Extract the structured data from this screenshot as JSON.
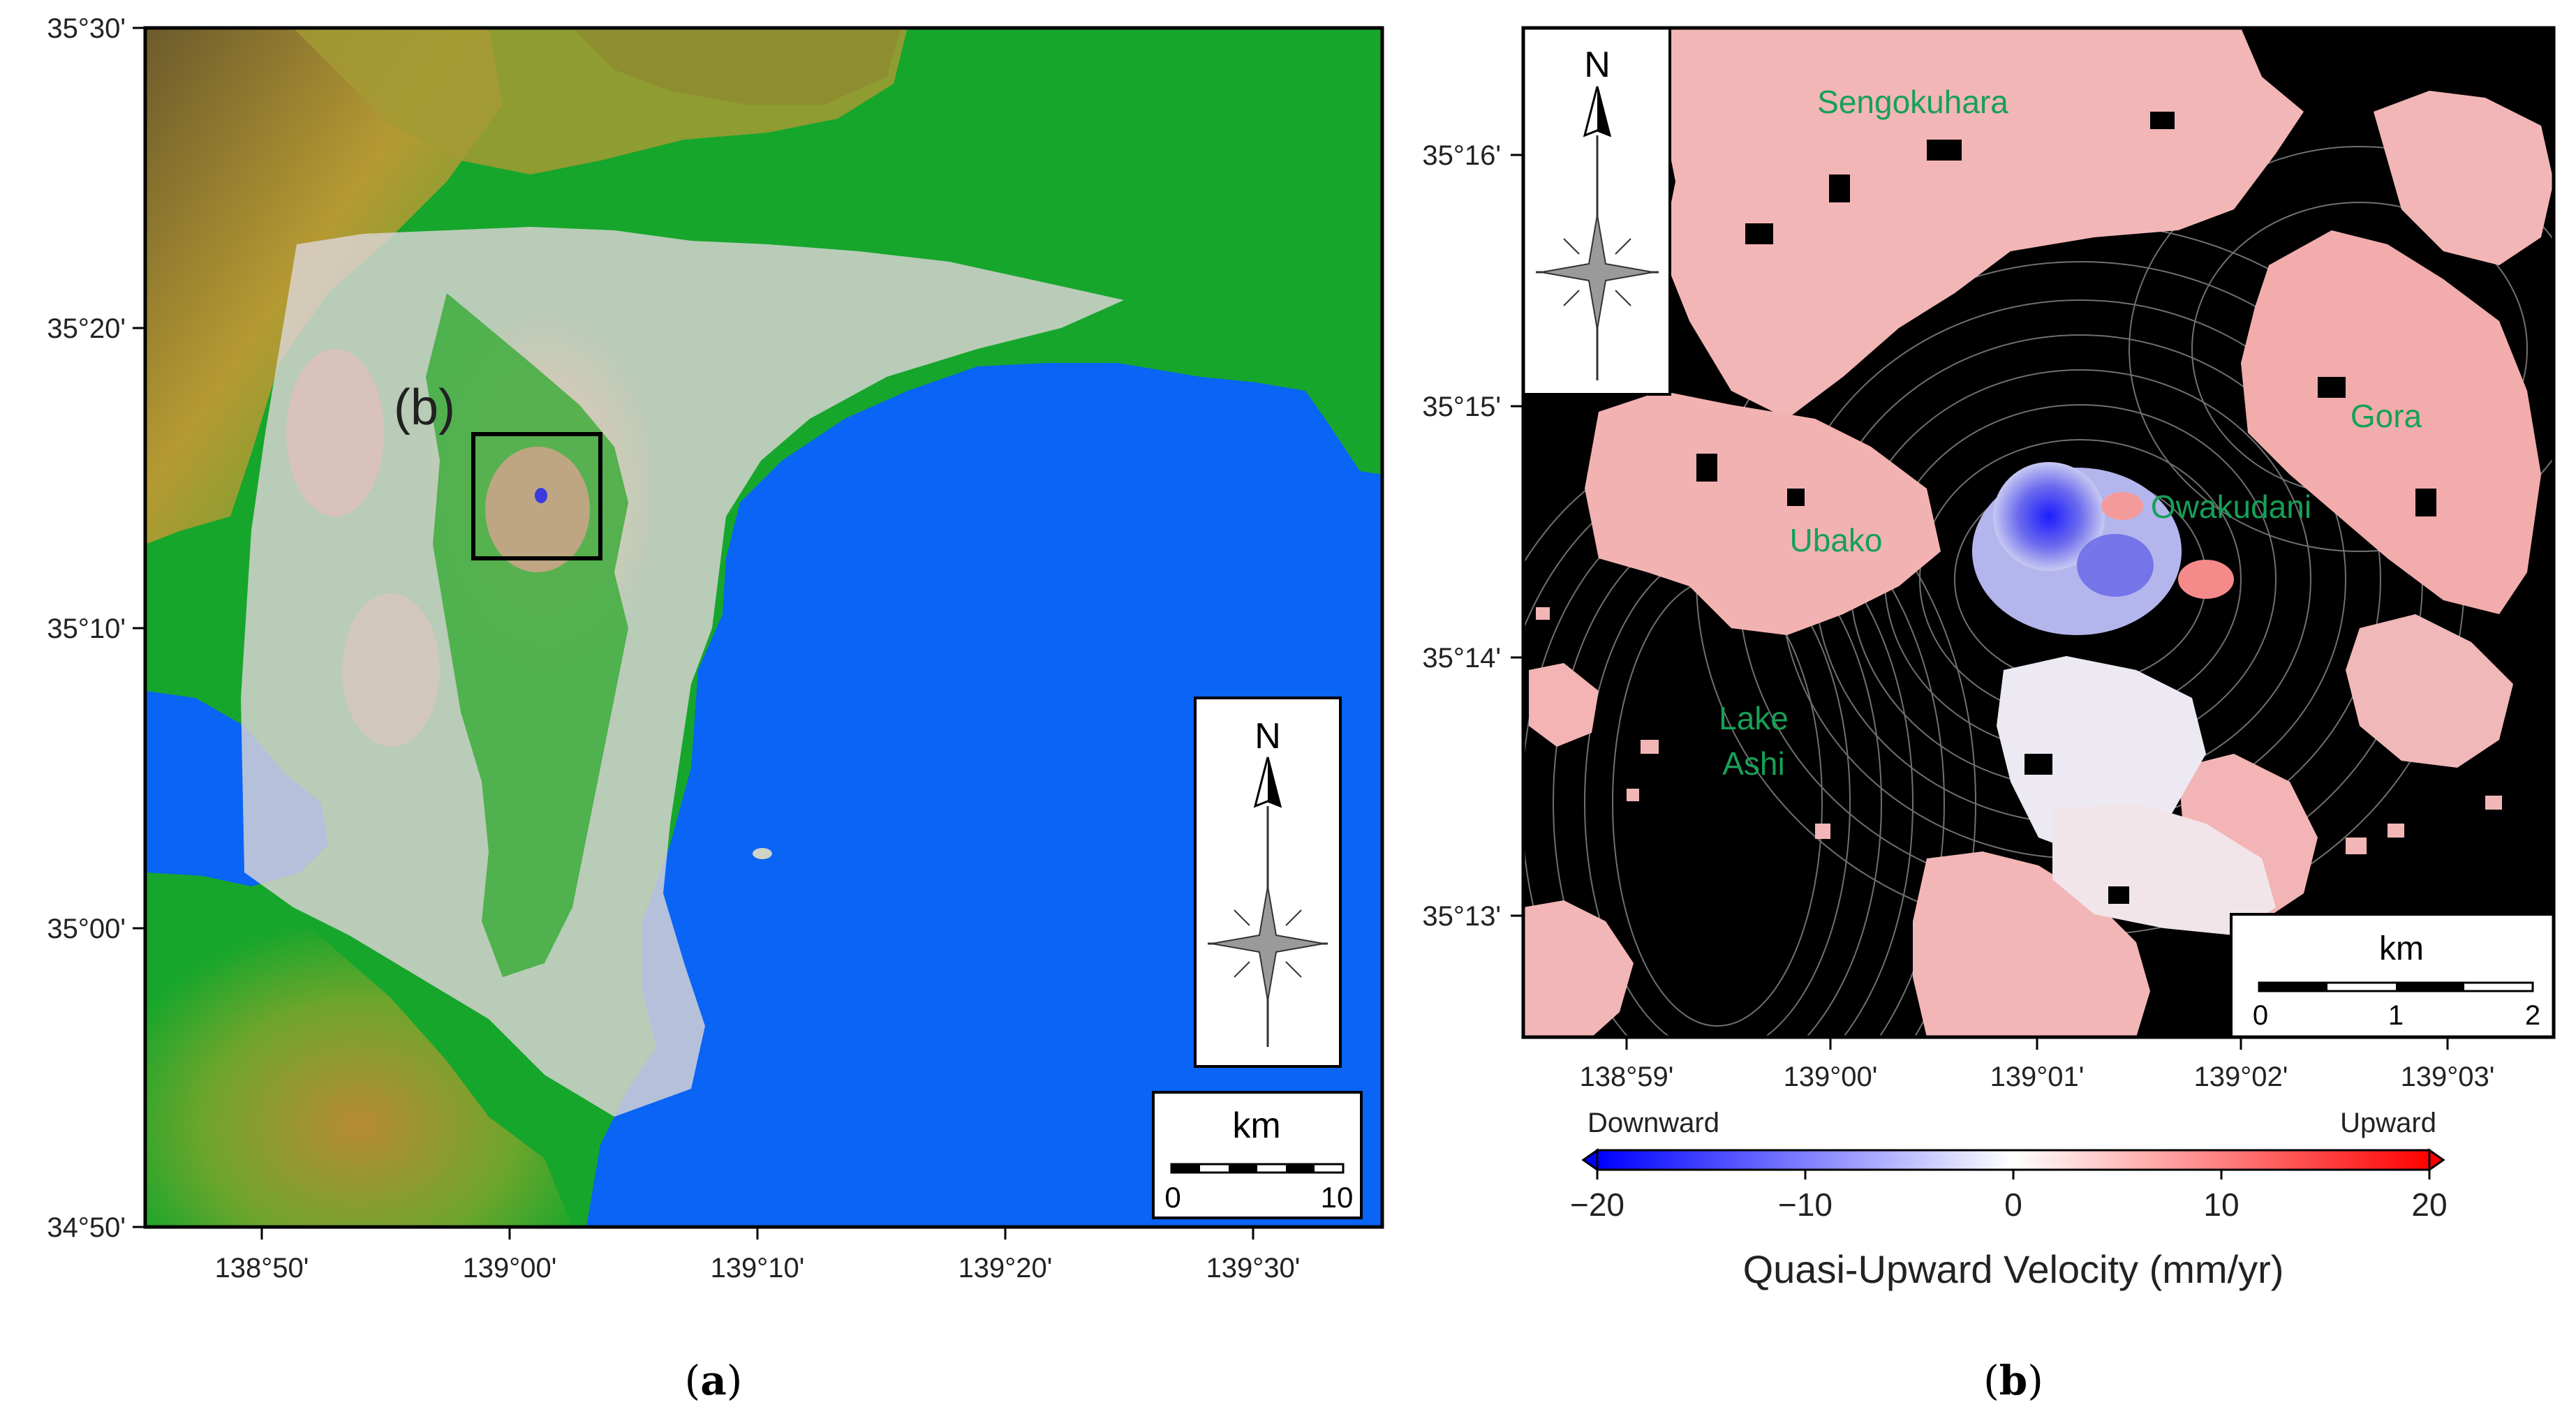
{
  "panel_a": {
    "label_prefix": "(",
    "label_letter": "a",
    "label_suffix": ")",
    "inset_label": "(b)",
    "lat_ticks": [
      "35°30'",
      "35°20'",
      "35°10'",
      "35°00'",
      "34°50'"
    ],
    "lon_ticks": [
      "138°50'",
      "139°00'",
      "139°10'",
      "139°20'",
      "139°30'"
    ],
    "north": "N",
    "scale_unit": "km",
    "scale_min": "0",
    "scale_max": "10",
    "colors": {
      "sea": "#0a64f5",
      "lowland": "#12a52a",
      "upland": "#b99a32",
      "coverage": "#d9cdd0"
    }
  },
  "panel_b": {
    "label_prefix": "(",
    "label_letter": "b",
    "label_suffix": ")",
    "lat_ticks": [
      "35°16'",
      "35°15'",
      "35°14'",
      "35°13'"
    ],
    "lon_ticks": [
      "138°59'",
      "139°00'",
      "139°01'",
      "139°02'",
      "139°03'"
    ],
    "places": [
      "Sengokuhara",
      "Gora",
      "Owakudani",
      "Ubako",
      "Lake",
      "Ashi"
    ],
    "north": "N",
    "scale_unit": "km",
    "scale_ticks": [
      "0",
      "1",
      "2"
    ]
  },
  "colorbar": {
    "left_label": "Downward",
    "right_label": "Upward",
    "ticks": [
      "−20",
      "−10",
      "0",
      "10",
      "20"
    ],
    "tick_values": [
      -20,
      -10,
      0,
      10,
      20
    ],
    "range": [
      -20,
      20
    ],
    "title": "Quasi-Upward Velocity (mm/yr)",
    "colors": {
      "low": "#0000ff",
      "mid": "#ffffff",
      "high": "#ff0000"
    }
  }
}
